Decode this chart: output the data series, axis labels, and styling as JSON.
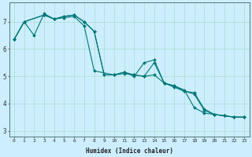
{
  "title": "",
  "xlabel": "Humidex (Indice chaleur)",
  "bg_color": "#cceeff",
  "grid_color": "#aaddcc",
  "line_color": "#007777",
  "xlim": [
    -0.5,
    23.5
  ],
  "ylim": [
    2.8,
    7.7
  ],
  "yticks": [
    3,
    4,
    5,
    6,
    7
  ],
  "xticks": [
    0,
    1,
    2,
    3,
    4,
    5,
    6,
    7,
    8,
    9,
    10,
    11,
    12,
    13,
    14,
    15,
    16,
    17,
    18,
    19,
    20,
    21,
    22,
    23
  ],
  "line1_x": [
    0,
    1,
    3,
    4,
    5,
    6,
    7,
    8,
    10,
    11,
    12,
    13,
    14,
    15,
    16,
    17,
    18,
    19,
    20,
    21,
    22,
    23
  ],
  "line1_y": [
    6.35,
    7.0,
    7.25,
    7.1,
    7.15,
    7.2,
    6.85,
    5.2,
    5.05,
    5.1,
    5.05,
    5.0,
    5.05,
    4.75,
    4.65,
    4.45,
    4.35,
    3.75,
    3.6,
    3.55,
    3.5,
    3.5
  ],
  "line2_x": [
    0,
    1,
    3,
    4,
    5,
    6,
    7,
    8,
    9,
    10,
    11,
    12,
    13,
    14,
    15,
    16,
    17,
    18,
    19,
    20,
    21,
    22,
    23
  ],
  "line2_y": [
    6.35,
    7.0,
    7.25,
    7.1,
    7.2,
    7.25,
    7.0,
    6.65,
    5.05,
    5.05,
    5.15,
    5.05,
    5.0,
    5.5,
    4.75,
    4.6,
    4.45,
    4.4,
    3.8,
    3.6,
    3.55,
    3.5,
    3.5
  ],
  "line3_x": [
    0,
    1,
    2,
    3,
    4,
    5,
    6,
    7,
    8,
    9,
    10,
    11,
    12,
    13,
    14,
    15,
    16,
    17,
    18,
    19,
    20,
    21,
    22,
    23
  ],
  "line3_y": [
    6.35,
    7.0,
    6.5,
    7.3,
    7.1,
    7.2,
    7.25,
    7.0,
    6.65,
    5.05,
    5.05,
    5.15,
    5.0,
    5.5,
    5.6,
    4.75,
    4.65,
    4.5,
    3.85,
    3.65,
    3.6,
    3.55,
    3.5,
    3.5
  ]
}
